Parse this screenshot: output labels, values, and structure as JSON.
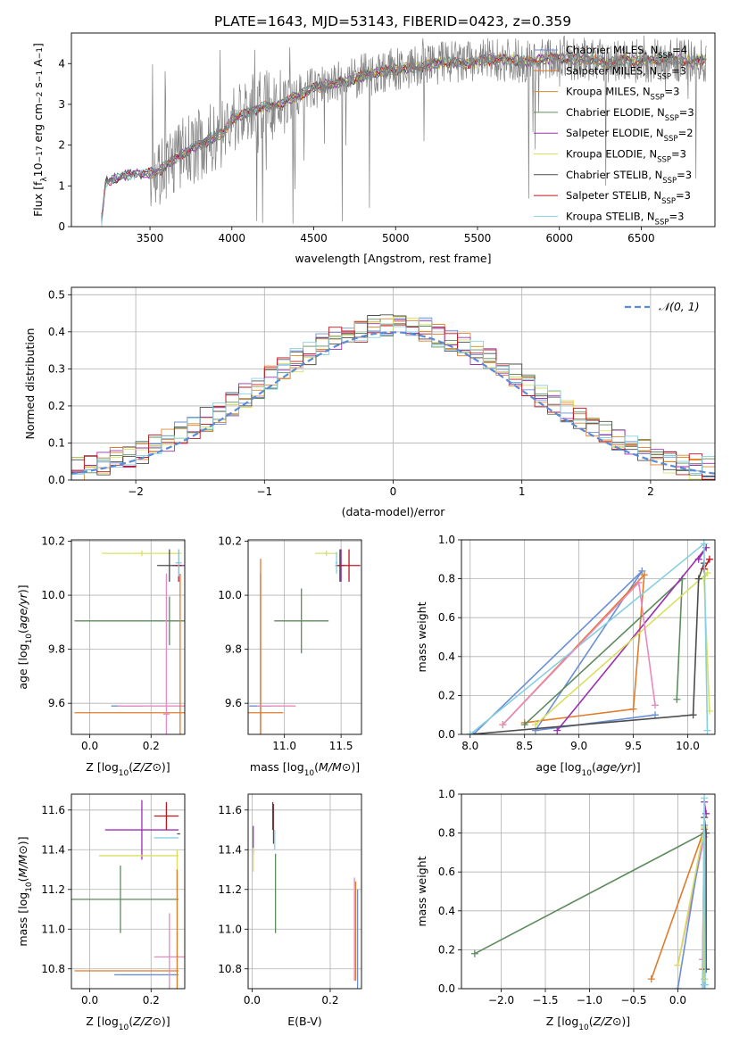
{
  "title": "PLATE=1643, MJD=53143, FIBERID=0423, z=0.359",
  "colors": [
    "#6a8fd6",
    "#e07b2b",
    "#d98a2b",
    "#5e8c5e",
    "#9b30b0",
    "#d8e060",
    "#4d4d4d",
    "#c0141e",
    "#86d0e0",
    "#e88ac0"
  ],
  "models": [
    {
      "name": "Chabrier MILES",
      "nssp": "4",
      "color": "#6a8fd6"
    },
    {
      "name": "Salpeter MILES",
      "nssp": "3",
      "color": "#e07b2b"
    },
    {
      "name": "Kroupa MILES",
      "nssp": "3",
      "color": "#d98a2b"
    },
    {
      "name": "Chabrier ELODIE",
      "nssp": "3",
      "color": "#5e8c5e"
    },
    {
      "name": "Salpeter ELODIE",
      "nssp": "2",
      "color": "#9b30b0"
    },
    {
      "name": "Kroupa ELODIE",
      "nssp": "3",
      "color": "#d8e060"
    },
    {
      "name": "Chabrier STELIB",
      "nssp": "3",
      "color": "#4d4d4d"
    },
    {
      "name": "Salpeter STELIB",
      "nssp": "3",
      "color": "#c0141e"
    },
    {
      "name": "Kroupa STELIB",
      "nssp": "3",
      "color": "#86d0e0"
    }
  ],
  "nssp_prefix": "N",
  "nssp_sub": "SSP",
  "chart_data": [
    {
      "id": "spectrum",
      "type": "line",
      "xlabel": "wavelength [Angstrom, rest frame]",
      "ylabel": "Flux [f",
      "ylabel_parts": {
        "a": "Flux [f",
        "sub": "λ",
        "b": "10",
        "sup1": "−17",
        "c": " erg cm",
        "sup2": "−2",
        "d": " s",
        "sup3": "−1",
        "e": " A",
        "sup4": "−1",
        "f": "]"
      },
      "xlim": [
        3020,
        6950
      ],
      "ylim": [
        0,
        4.75
      ],
      "xticks": [
        3500,
        4000,
        4500,
        5000,
        5500,
        6000,
        6500
      ],
      "yticks": [
        0,
        1,
        2,
        3,
        4
      ],
      "data_color": "#808080",
      "continuum_x": [
        3200,
        3230,
        3300,
        3400,
        3500,
        3550,
        3600,
        3700,
        3800,
        3900,
        3950,
        4000,
        4100,
        4200,
        4300,
        4400,
        4500,
        4600,
        4700,
        4800,
        4900,
        5000,
        5100,
        5200,
        5300,
        5400,
        5500,
        5600,
        5700,
        5800,
        5900,
        6000,
        6100,
        6200,
        6300,
        6400,
        6500,
        6600,
        6700,
        6800,
        6900
      ],
      "continuum_y": [
        0,
        1.1,
        1.2,
        1.3,
        1.3,
        1.35,
        1.5,
        1.8,
        2.0,
        2.2,
        2.3,
        2.65,
        2.8,
        2.95,
        3.0,
        3.2,
        3.4,
        3.5,
        3.55,
        3.7,
        3.8,
        3.85,
        3.9,
        3.95,
        4.05,
        4.0,
        4.05,
        4.1,
        4.1,
        4.05,
        4.1,
        4.15,
        4.1,
        4.1,
        4.0,
        4.1,
        4.05,
        4.1,
        4.1,
        4.05,
        4.1
      ]
    },
    {
      "id": "residuals",
      "type": "histogram",
      "xlabel": "(data-model)/error",
      "ylabel": "Normed distribution",
      "xlim": [
        -2.5,
        2.5
      ],
      "ylim": [
        0,
        0.52
      ],
      "xticks": [
        -2,
        -1,
        0,
        1,
        2
      ],
      "yticks": [
        0,
        0.1,
        0.2,
        0.3,
        0.4,
        0.5
      ],
      "bin_width": 0.1,
      "normal_label": "𝒩(0, 1)",
      "normal_color": "#5b8bd6"
    },
    {
      "id": "age_vs_Z",
      "type": "errorbar",
      "xlabel": "Z [log10(Z/Z⊙)]",
      "ylabel": "age  [log10(age/yr)]",
      "xlim": [
        -0.06,
        0.31
      ],
      "ylim": [
        9.485,
        10.205
      ],
      "xticks": [
        0.0,
        0.2
      ],
      "yticks": [
        9.6,
        9.8,
        10.0,
        10.2
      ],
      "points": [
        {
          "x": 0.12,
          "y": 9.59,
          "xerr": 0.05,
          "yerr": 0.0,
          "c": "#6a8fd6"
        },
        {
          "x": 0.14,
          "y": 9.565,
          "xerr": 0.19,
          "yerr": 0.0,
          "c": "#e07b2b"
        },
        {
          "x": 0.27,
          "y": 9.59,
          "xerr": 0.18,
          "yerr": 0.0,
          "c": "#e88ac0"
        },
        {
          "x": 0.26,
          "y": 9.905,
          "xerr": 0.31,
          "yerr": 0.09,
          "c": "#5e8c5e"
        },
        {
          "x": 0.29,
          "y": 10.11,
          "xerr": 0.02,
          "yerr": 0.01,
          "c": "#9b30b0"
        },
        {
          "x": 0.17,
          "y": 10.155,
          "xerr": 0.13,
          "yerr": 0.01,
          "c": "#d8e060"
        },
        {
          "x": 0.26,
          "y": 10.11,
          "xerr": 0.04,
          "yerr": 0.06,
          "c": "#4d4d4d"
        },
        {
          "x": 0.29,
          "y": 10.11,
          "xerr": 0.01,
          "yerr": 0.06,
          "c": "#c0141e"
        },
        {
          "x": 0.29,
          "y": 10.12,
          "xerr": 0.01,
          "yerr": 0.05,
          "c": "#86d0e0"
        },
        {
          "x": 0.25,
          "y": 9.56,
          "xerr": 0.01,
          "yerr": 0.52,
          "c": "#e88ac0"
        },
        {
          "x": 0.295,
          "y": 9.56,
          "xerr": 0.0,
          "yerr": 0.52,
          "c": "#e07b2b"
        }
      ]
    },
    {
      "id": "age_vs_mass",
      "type": "errorbar",
      "xlabel": "mass [log10(M/M⊙)]",
      "ylabel": "",
      "xlim": [
        10.68,
        11.68
      ],
      "ylim": [
        9.485,
        10.205
      ],
      "xticks": [
        11.0,
        11.5
      ],
      "yticks": [
        9.6,
        9.8,
        10.0,
        10.2
      ],
      "points": [
        {
          "x": 10.79,
          "y": 9.59,
          "xerr": 0.1,
          "yerr": 0.49,
          "c": "#6a8fd6"
        },
        {
          "x": 10.79,
          "y": 9.565,
          "xerr": 0.2,
          "yerr": 0.57,
          "c": "#e07b2b"
        },
        {
          "x": 10.93,
          "y": 9.59,
          "xerr": 0.17,
          "yerr": 0.0,
          "c": "#e88ac0"
        },
        {
          "x": 11.15,
          "y": 9.905,
          "xerr": 0.24,
          "yerr": 0.12,
          "c": "#5e8c5e"
        },
        {
          "x": 11.5,
          "y": 10.11,
          "xerr": 0.01,
          "yerr": 0.06,
          "c": "#9b30b0"
        },
        {
          "x": 11.37,
          "y": 10.155,
          "xerr": 0.1,
          "yerr": 0.01,
          "c": "#d8e060"
        },
        {
          "x": 11.49,
          "y": 10.11,
          "xerr": 0.04,
          "yerr": 0.06,
          "c": "#4d4d4d"
        },
        {
          "x": 11.57,
          "y": 10.11,
          "xerr": 0.1,
          "yerr": 0.06,
          "c": "#c0141e"
        },
        {
          "x": 11.46,
          "y": 10.12,
          "xerr": 0.01,
          "yerr": 0.04,
          "c": "#86d0e0"
        }
      ]
    },
    {
      "id": "mass_weight_vs_age",
      "type": "line",
      "xlabel": "age  [log10(age/yr)]",
      "ylabel": "mass weight",
      "xlim": [
        7.92,
        10.25
      ],
      "ylim": [
        0,
        1
      ],
      "xticks": [
        8.0,
        8.5,
        9.0,
        9.5,
        10.0
      ],
      "yticks": [
        0.0,
        0.2,
        0.4,
        0.6,
        0.8,
        1.0
      ],
      "series": [
        {
          "c": "#6a8fd6",
          "x": [
            8.03,
            9.58,
            8.6,
            9.7
          ],
          "y": [
            0.0,
            0.84,
            0.02,
            0.1
          ]
        },
        {
          "c": "#e07b2b",
          "x": [
            8.3,
            9.6,
            9.5,
            8.5
          ],
          "y": [
            0.05,
            0.82,
            0.13,
            0.06
          ]
        },
        {
          "c": "#5e8c5e",
          "x": [
            8.5,
            9.95,
            9.9
          ],
          "y": [
            0.05,
            0.8,
            0.18
          ]
        },
        {
          "c": "#9b30b0",
          "x": [
            8.8,
            10.17,
            10.1
          ],
          "y": [
            0.02,
            0.96,
            0.9
          ]
        },
        {
          "c": "#d8e060",
          "x": [
            8.6,
            10.18,
            10.15,
            10.2
          ],
          "y": [
            0.05,
            0.83,
            0.8,
            0.12
          ]
        },
        {
          "c": "#4d4d4d",
          "x": [
            8.0,
            10.05,
            10.1,
            10.15
          ],
          "y": [
            0.0,
            0.1,
            0.8,
            0.88
          ]
        },
        {
          "c": "#c0141e",
          "x": [
            10.15,
            10.2
          ],
          "y": [
            0.85,
            0.9
          ]
        },
        {
          "c": "#86d0e0",
          "x": [
            8.0,
            10.15,
            10.18
          ],
          "y": [
            0.0,
            0.98,
            0.02
          ]
        },
        {
          "c": "#e88ac0",
          "x": [
            8.3,
            9.55,
            9.7
          ],
          "y": [
            0.05,
            0.78,
            0.15
          ]
        }
      ]
    },
    {
      "id": "mass_vs_Z",
      "type": "errorbar",
      "xlabel": "Z [log10(Z/Z⊙)]",
      "ylabel": "mass [log10(M/M⊙)]",
      "xlim": [
        -0.06,
        0.31
      ],
      "ylim": [
        10.7,
        11.68
      ],
      "xticks": [
        0.0,
        0.2
      ],
      "yticks": [
        10.8,
        11.0,
        11.2,
        11.4,
        11.6
      ],
      "points": [
        {
          "x": 0.185,
          "y": 10.77,
          "xerr": 0.105,
          "yerr": 0.0,
          "c": "#6a8fd6"
        },
        {
          "x": 0.12,
          "y": 10.79,
          "xerr": 0.17,
          "yerr": 0.0,
          "c": "#e07b2b"
        },
        {
          "x": 0.26,
          "y": 10.86,
          "xerr": 0.05,
          "yerr": 0.22,
          "c": "#e88ac0"
        },
        {
          "x": 0.1,
          "y": 11.15,
          "xerr": 0.19,
          "yerr": 0.17,
          "c": "#5e8c5e"
        },
        {
          "x": 0.17,
          "y": 11.5,
          "xerr": 0.12,
          "yerr": 0.15,
          "c": "#9b30b0"
        },
        {
          "x": 0.16,
          "y": 11.37,
          "xerr": 0.13,
          "yerr": 0.0,
          "c": "#d8e060"
        },
        {
          "x": 0.29,
          "y": 11.48,
          "xerr": 0.005,
          "yerr": 0.0,
          "c": "#4d4d4d"
        },
        {
          "x": 0.25,
          "y": 11.57,
          "xerr": 0.04,
          "yerr": 0.07,
          "c": "#c0141e"
        },
        {
          "x": 0.25,
          "y": 11.46,
          "xerr": 0.04,
          "yerr": 0.0,
          "c": "#86d0e0"
        },
        {
          "x": 0.285,
          "y": 11.3,
          "xerr": 0.0,
          "yerr": 0.1,
          "c": "#d8e060"
        },
        {
          "x": 0.285,
          "y": 11.0,
          "xerr": 0.0,
          "yerr": 0.3,
          "c": "#e07b2b"
        }
      ]
    },
    {
      "id": "mass_vs_ebv",
      "type": "errorbar",
      "xlabel": "E(B-V)",
      "ylabel": "",
      "xlim": [
        -0.01,
        0.28
      ],
      "ylim": [
        10.7,
        11.68
      ],
      "xticks": [
        0.0,
        0.2
      ],
      "yticks": [
        10.8,
        11.0,
        11.2,
        11.4,
        11.6
      ],
      "points": [
        {
          "x": 0.27,
          "y": 10.95,
          "xerr": 0.0,
          "yerr": 0.25,
          "c": "#6a8fd6"
        },
        {
          "x": 0.265,
          "y": 10.99,
          "xerr": 0.0,
          "yerr": 0.25,
          "c": "#e07b2b"
        },
        {
          "x": 0.262,
          "y": 11.0,
          "xerr": 0.0,
          "yerr": 0.26,
          "c": "#e88ac0"
        },
        {
          "x": 0.06,
          "y": 11.18,
          "xerr": 0.0,
          "yerr": 0.2,
          "c": "#5e8c5e"
        },
        {
          "x": 0.003,
          "y": 11.45,
          "xerr": 0.0,
          "yerr": 0.07,
          "c": "#9b30b0"
        },
        {
          "x": 0.003,
          "y": 11.35,
          "xerr": 0.0,
          "yerr": 0.06,
          "c": "#d8e060"
        },
        {
          "x": 0.055,
          "y": 11.53,
          "xerr": 0.0,
          "yerr": 0.1,
          "c": "#4d4d4d"
        },
        {
          "x": 0.053,
          "y": 11.57,
          "xerr": 0.0,
          "yerr": 0.07,
          "c": "#c0141e"
        },
        {
          "x": 0.058,
          "y": 11.45,
          "xerr": 0.0,
          "yerr": 0.05,
          "c": "#86d0e0"
        }
      ]
    },
    {
      "id": "mass_weight_vs_Z",
      "type": "line",
      "xlabel": "Z [log10(Z/Z⊙)]",
      "ylabel": "mass weight",
      "xlim": [
        -2.45,
        0.42
      ],
      "ylim": [
        0,
        1
      ],
      "xticks": [
        -2.0,
        -1.5,
        -1.0,
        -0.5,
        0.0
      ],
      "yticks": [
        0.0,
        0.2,
        0.4,
        0.6,
        0.8,
        1.0
      ],
      "series": [
        {
          "c": "#5e8c5e",
          "x": [
            -2.3,
            0.3,
            0.3
          ],
          "y": [
            0.18,
            0.8,
            0.05
          ]
        },
        {
          "c": "#e07b2b",
          "x": [
            -0.3,
            0.3,
            0.28
          ],
          "y": [
            0.05,
            0.82,
            0.1
          ]
        },
        {
          "c": "#e88ac0",
          "x": [
            0.0,
            0.3,
            0.28
          ],
          "y": [
            0.12,
            0.78,
            0.15
          ]
        },
        {
          "c": "#6a8fd6",
          "x": [
            0.0,
            0.3,
            0.3
          ],
          "y": [
            0.0,
            0.84,
            0.02
          ]
        },
        {
          "c": "#d8e060",
          "x": [
            0.0,
            0.3,
            0.3
          ],
          "y": [
            0.12,
            0.83,
            0.05
          ]
        },
        {
          "c": "#9b30b0",
          "x": [
            0.3,
            0.32
          ],
          "y": [
            0.96,
            0.9
          ]
        },
        {
          "c": "#4d4d4d",
          "x": [
            0.3,
            0.32,
            0.32
          ],
          "y": [
            0.88,
            0.8,
            0.1
          ]
        },
        {
          "c": "#86d0e0",
          "x": [
            0.28,
            0.3,
            0.31
          ],
          "y": [
            0.0,
            0.98,
            0.02
          ]
        }
      ]
    }
  ]
}
